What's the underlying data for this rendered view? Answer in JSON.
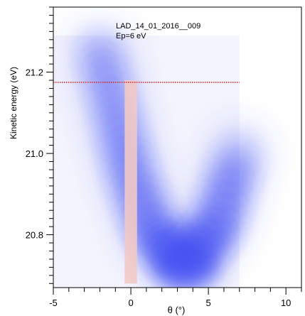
{
  "chart_data": {
    "type": "heatmap",
    "annotation_lines": [
      "LAD_14_01_2016__009",
      "Ep=6 eV"
    ],
    "xlabel": "θ (°)",
    "ylabel": "Kinetic energy (eV)",
    "xlim": [
      -5,
      11
    ],
    "ylim": [
      20.67,
      21.36
    ],
    "x_ticks": [
      -5,
      0,
      5,
      10
    ],
    "y_ticks": [
      20.8,
      21.0,
      21.2
    ],
    "image_extent": {
      "x": [
        -5,
        7
      ],
      "y": [
        20.67,
        21.29
      ]
    },
    "colormap": [
      "#ffffff",
      "#3f4cf2"
    ],
    "band": {
      "description_points": [
        {
          "x": -2.0,
          "y": 21.25,
          "intensity": 0.12
        },
        {
          "x": -1.0,
          "y": 21.1,
          "intensity": 0.25
        },
        {
          "x": 0.0,
          "y": 20.95,
          "intensity": 0.45
        },
        {
          "x": 1.5,
          "y": 20.8,
          "intensity": 0.65
        },
        {
          "x": 3.5,
          "y": 20.73,
          "intensity": 0.95
        },
        {
          "x": 5.5,
          "y": 20.82,
          "intensity": 0.7
        },
        {
          "x": 7.0,
          "y": 21.0,
          "intensity": 0.45
        }
      ]
    },
    "horizontal_line": {
      "y": 21.175,
      "color": "#e02020",
      "style": "dotted"
    },
    "vertical_band": {
      "x": [
        -0.4,
        0.4
      ],
      "color": "#f1c9c7"
    }
  }
}
